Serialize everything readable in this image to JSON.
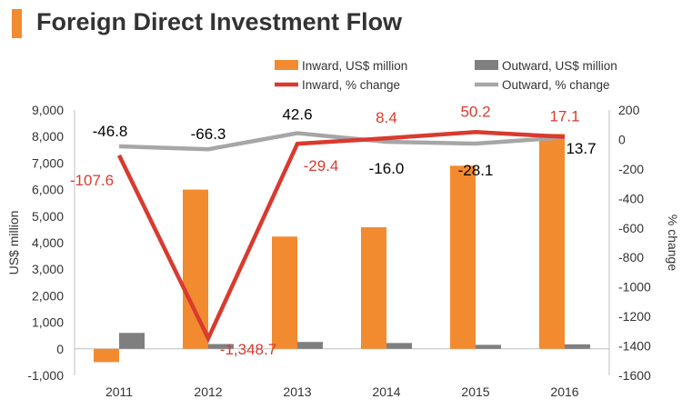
{
  "header": {
    "title": "Foreign Direct Investment Flow",
    "accent_color": "#f28a30"
  },
  "chart_data": {
    "type": "bar",
    "title": "Foreign Direct Investment Flow",
    "categories": [
      "2011",
      "2012",
      "2013",
      "2014",
      "2015",
      "2016"
    ],
    "ylabel": "US$ million",
    "y2label": "% change",
    "ylim": [
      -1000,
      9000
    ],
    "y2lim": [
      -1600,
      200
    ],
    "yticks": [
      "-1,000",
      "0",
      "1,000",
      "2,000",
      "3,000",
      "4,000",
      "5,000",
      "6,000",
      "7,000",
      "8,000",
      "9,000"
    ],
    "y2ticks": [
      "-1600",
      "-1400",
      "-1200",
      "-1000",
      "-800",
      "-600",
      "-400",
      "-200",
      "0",
      "200"
    ],
    "legend_position": "top",
    "series": [
      {
        "name": "Inward, US$ million",
        "kind": "bar",
        "axis": "left",
        "color": "#f28a30",
        "values": [
          -500,
          6000,
          4230,
          4580,
          6900,
          8100
        ]
      },
      {
        "name": "Outward, US$ million",
        "kind": "bar",
        "axis": "left",
        "color": "#7f7f7f",
        "values": [
          600,
          180,
          260,
          220,
          150,
          170
        ]
      },
      {
        "name": "Inward, % change",
        "kind": "line",
        "axis": "right",
        "color": "#d93a2f",
        "values": [
          -107.6,
          -1348.7,
          -29.4,
          8.4,
          50.2,
          17.1
        ],
        "labels": [
          "-107.6",
          "-1,348.7",
          "-29.4",
          "8.4",
          "50.2",
          "17.1"
        ]
      },
      {
        "name": "Outward, % change",
        "kind": "line",
        "axis": "right",
        "color": "#a6a6a6",
        "values": [
          -46.8,
          -66.3,
          42.6,
          -16.0,
          -28.1,
          13.7
        ],
        "labels": [
          "-46.8",
          "-66.3",
          "42.6",
          "-16.0",
          "-28.1",
          "13.7"
        ]
      }
    ]
  }
}
